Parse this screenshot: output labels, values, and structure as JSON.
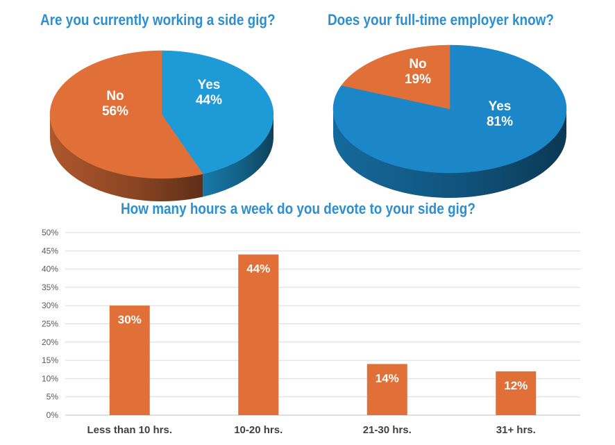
{
  "colors": {
    "title": "#2e8fd0",
    "orange": "#e07038",
    "blue_light": "#1e9bd7",
    "blue_main": "#1b86c8",
    "grid": "#d9d9d9",
    "axis_text": "#595959"
  },
  "chart_data": [
    {
      "type": "pie",
      "title": "Are you currently working a side gig?",
      "slices": [
        {
          "label": "Yes",
          "value": 44,
          "value_label": "44%",
          "color": "#1e9bd7"
        },
        {
          "label": "No",
          "value": 56,
          "value_label": "56%",
          "color": "#e07038"
        }
      ],
      "style": "3d"
    },
    {
      "type": "pie",
      "title": "Does your full-time employer know?",
      "slices": [
        {
          "label": "Yes",
          "value": 81,
          "value_label": "81%",
          "color": "#1b86c8"
        },
        {
          "label": "No",
          "value": 19,
          "value_label": "19%",
          "color": "#e07038"
        }
      ],
      "style": "3d"
    },
    {
      "type": "bar",
      "title": "How many hours a week do you devote to your side gig?",
      "categories": [
        "Less than 10 hrs.",
        "10-20 hrs.",
        "21-30 hrs.",
        "31+ hrs."
      ],
      "values": [
        30,
        44,
        14,
        12
      ],
      "value_labels": [
        "30%",
        "44%",
        "14%",
        "12%"
      ],
      "ylim": [
        0,
        50
      ],
      "yticks": [
        "0%",
        "5%",
        "10%",
        "15%",
        "20%",
        "25%",
        "30%",
        "35%",
        "40%",
        "45%",
        "50%"
      ],
      "grid": true,
      "bar_color": "#e07038"
    }
  ]
}
